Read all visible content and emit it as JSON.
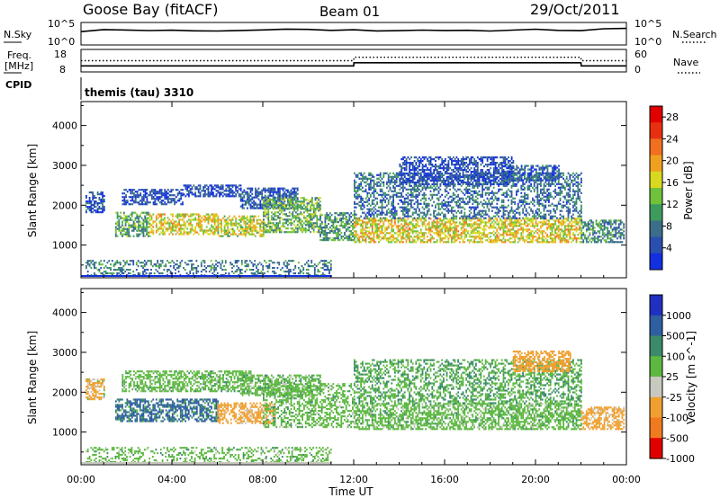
{
  "header": {
    "station": "Goose Bay (fitACF)",
    "beam": "Beam 01",
    "date": "29/Oct/2011"
  },
  "nsky_panel": {
    "label": "N.Sky",
    "right_label": "N.Search",
    "left_ticks": [
      "10^5",
      "10^0"
    ],
    "right_ticks": [
      "10^5",
      "10^0"
    ]
  },
  "freq_panel": {
    "label_line1": "Freq.",
    "label_line2": "[MHz]",
    "right_label": "Nave",
    "left_ticks": [
      "18",
      "8"
    ],
    "right_ticks": [
      "60",
      "0"
    ]
  },
  "cpid_panel": {
    "label": "CPID",
    "mode": "themis (tau) 3310"
  },
  "colors": {
    "power": [
      "#1230e0",
      "#2a4fb0",
      "#3a6e8a",
      "#3f9a5e",
      "#6fc23a",
      "#d8d820",
      "#f0a020",
      "#f07020",
      "#e83010",
      "#e00000"
    ],
    "velocity": [
      "#2030c0",
      "#2e5fa0",
      "#3b8a6a",
      "#5cb840",
      "#c8c8c0",
      "#c8c8c0",
      "#f0a030",
      "#f07a20",
      "#e84010",
      "#e00000"
    ]
  },
  "chart_data": [
    {
      "type": "line",
      "name": "nsky_nsearch",
      "ylabel": "N.Sky",
      "y2label": "N.Search",
      "x": [
        0,
        1,
        2,
        3,
        4,
        5,
        6,
        7,
        8,
        9,
        10,
        11,
        12,
        13,
        14,
        15,
        16,
        17,
        18,
        19,
        20,
        21,
        22,
        23,
        24
      ],
      "series": [
        {
          "name": "N.Sky",
          "values": [
            1000,
            3200,
            2500,
            1800,
            2200,
            1600,
            1400,
            1900,
            2600,
            4000,
            3500,
            2000,
            2800,
            1500,
            1700,
            2400,
            1900,
            2100,
            1400,
            2300,
            3800,
            2000,
            1700,
            5000,
            6000
          ]
        }
      ],
      "ylim": [
        1,
        100000
      ],
      "yscale": "log"
    },
    {
      "type": "line",
      "name": "freq_nave",
      "ylabel": "Freq. [MHz]",
      "y2label": "Nave",
      "x": [
        0,
        0.1,
        12,
        12.01,
        22,
        22.01,
        24
      ],
      "series": [
        {
          "name": "Freq.",
          "values": [
            10.5,
            10.5,
            10.5,
            12.0,
            12.0,
            10.5,
            10.5
          ]
        },
        {
          "name": "Nave",
          "values": [
            30,
            30,
            30,
            40,
            40,
            30,
            30
          ]
        }
      ],
      "ylim": [
        8,
        18
      ],
      "y2lim": [
        0,
        60
      ]
    },
    {
      "type": "heatmap",
      "name": "power",
      "xlabel": "Time UT",
      "ylabel": "Slant Range [km]",
      "colorbar_label": "Power [dB]",
      "colorbar_ticks": [
        "4",
        "8",
        "12",
        "16",
        "20",
        "24",
        "28"
      ],
      "x_ticks": [
        "00:00",
        "04:00",
        "08:00",
        "12:00",
        "16:00",
        "20:00",
        "00:00"
      ],
      "y_ticks": [
        "1000",
        "2000",
        "3000",
        "4000"
      ],
      "xlim": [
        0,
        24
      ],
      "ylim": [
        180,
        4600
      ],
      "clim": [
        0,
        30
      ],
      "echo_regions": [
        {
          "t0": 0.2,
          "t1": 1.0,
          "r0": 1800,
          "r1": 2300,
          "v": 5
        },
        {
          "t0": 1.5,
          "t1": 3.0,
          "r0": 1200,
          "r1": 1800,
          "v": 11
        },
        {
          "t0": 1.8,
          "t1": 4.5,
          "r0": 2000,
          "r1": 2400,
          "v": 4
        },
        {
          "t0": 3.0,
          "t1": 6.0,
          "r0": 1250,
          "r1": 1750,
          "v": 17
        },
        {
          "t0": 4.5,
          "t1": 7.0,
          "r0": 2200,
          "r1": 2500,
          "v": 4
        },
        {
          "t0": 6.0,
          "t1": 8.0,
          "r0": 1200,
          "r1": 1700,
          "v": 16
        },
        {
          "t0": 7.0,
          "t1": 9.5,
          "r0": 1900,
          "r1": 2400,
          "v": 5
        },
        {
          "t0": 8.0,
          "t1": 10.5,
          "r0": 1300,
          "r1": 2200,
          "v": 12
        },
        {
          "t0": 10.5,
          "t1": 12.0,
          "r0": 1100,
          "r1": 1800,
          "v": 10
        },
        {
          "t0": 12.0,
          "t1": 22.0,
          "r0": 1050,
          "r1": 1650,
          "v": 17
        },
        {
          "t0": 12.0,
          "t1": 22.0,
          "r0": 1650,
          "r1": 2800,
          "v": 7
        },
        {
          "t0": 14.0,
          "t1": 19.0,
          "r0": 2500,
          "r1": 3200,
          "v": 4
        },
        {
          "t0": 18.5,
          "t1": 21.0,
          "r0": 2600,
          "r1": 3000,
          "v": 5
        },
        {
          "t0": 22.0,
          "t1": 23.9,
          "r0": 1050,
          "r1": 1600,
          "v": 9
        },
        {
          "t0": 0.2,
          "t1": 11.0,
          "r0": 220,
          "r1": 600,
          "v": 8
        }
      ]
    },
    {
      "type": "heatmap",
      "name": "velocity",
      "xlabel": "Time UT",
      "ylabel": "Slant Range [km]",
      "colorbar_label": "Velocity [m s^-1]",
      "colorbar_ticks": [
        "1000",
        "500",
        "100",
        "25",
        "-25",
        "-100",
        "-500",
        "-1000"
      ],
      "x_ticks": [
        "00:00",
        "04:00",
        "08:00",
        "12:00",
        "16:00",
        "20:00",
        "00:00"
      ],
      "y_ticks": [
        "1000",
        "2000",
        "3000",
        "4000"
      ],
      "xlim": [
        0,
        24
      ],
      "ylim": [
        180,
        4600
      ],
      "clim": [
        -1000,
        1000
      ],
      "echo_regions": [
        {
          "t0": 0.2,
          "t1": 1.0,
          "r0": 1800,
          "r1": 2300,
          "v": -150
        },
        {
          "t0": 1.5,
          "t1": 6.0,
          "r0": 1250,
          "r1": 1800,
          "v": 150
        },
        {
          "t0": 1.8,
          "t1": 7.5,
          "r0": 2000,
          "r1": 2500,
          "v": 0
        },
        {
          "t0": 6.0,
          "t1": 8.5,
          "r0": 1200,
          "r1": 1700,
          "v": -200
        },
        {
          "t0": 7.0,
          "t1": 10.5,
          "r0": 1900,
          "r1": 2400,
          "v": 0
        },
        {
          "t0": 8.0,
          "t1": 12.0,
          "r0": 1100,
          "r1": 2200,
          "v": 0
        },
        {
          "t0": 12.0,
          "t1": 22.0,
          "r0": 1050,
          "r1": 1700,
          "v": 0
        },
        {
          "t0": 12.0,
          "t1": 22.0,
          "r0": 1700,
          "r1": 2800,
          "v": 20
        },
        {
          "t0": 19.0,
          "t1": 21.5,
          "r0": 2500,
          "r1": 3000,
          "v": -300
        },
        {
          "t0": 22.0,
          "t1": 23.9,
          "r0": 1050,
          "r1": 1600,
          "v": -200
        },
        {
          "t0": 0.2,
          "t1": 11.0,
          "r0": 220,
          "r1": 600,
          "v": 0
        }
      ]
    }
  ]
}
